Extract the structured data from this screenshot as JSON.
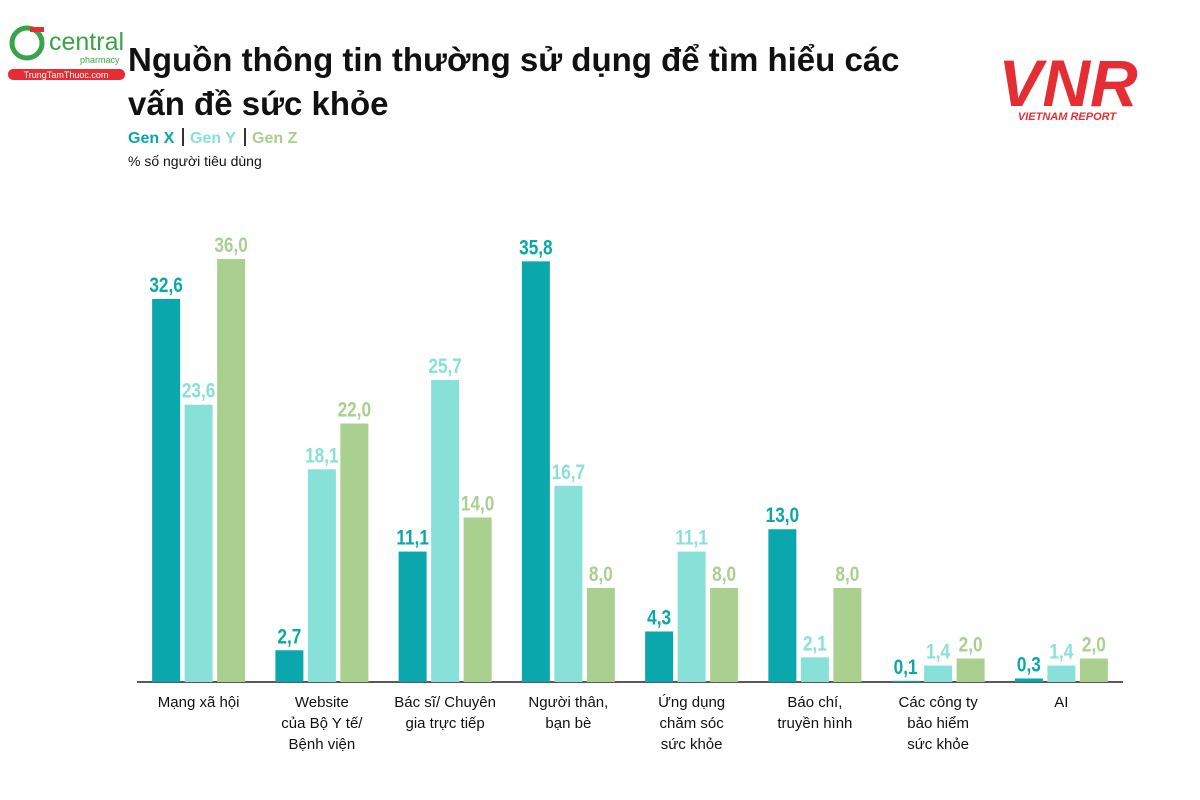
{
  "logos": {
    "left": {
      "name": "central",
      "sub": "pharmacy",
      "url": "TrungTamThuoc.com"
    },
    "right": {
      "mark": "VNR",
      "name": "VIETNAM REPORT"
    }
  },
  "chart_data": {
    "type": "bar",
    "title": "Nguồn thông tin thường sử dụng để tìm hiểu các vấn đề sức khỏe",
    "subtitle": "% số người tiêu dùng",
    "categories": [
      "Mạng xã hội",
      "Website\ncủa Bộ Y tế/\nBệnh viện",
      "Bác sĩ/ Chuyên\ngia trực tiếp",
      "Người thân,\nbạn bè",
      "Ứng dụng\nchăm sóc\nsức khỏe",
      "Báo chí,\ntruyền hình",
      "Các công ty\nbảo hiểm\nsức khỏe",
      "AI"
    ],
    "series": [
      {
        "name": "Gen X",
        "color": "#0aa7ac",
        "values": [
          32.6,
          2.7,
          11.1,
          35.8,
          4.3,
          13.0,
          0.1,
          0.3
        ],
        "value_labels": [
          "32,6",
          "2,7",
          "11,1",
          "35,8",
          "4,3",
          "13,0",
          "0,1",
          "0,3"
        ]
      },
      {
        "name": "Gen Y",
        "color": "#88e1d8",
        "values": [
          23.6,
          18.1,
          25.7,
          16.7,
          11.1,
          2.1,
          1.4,
          1.4
        ],
        "value_labels": [
          "23,6",
          "18,1",
          "25,7",
          "16,7",
          "11,1",
          "2,1",
          "1,4",
          "1,4"
        ]
      },
      {
        "name": "Gen Z",
        "color": "#a9d08e",
        "values": [
          36.0,
          22.0,
          14.0,
          8.0,
          8.0,
          8.0,
          2.0,
          2.0
        ],
        "value_labels": [
          "36,0",
          "22,0",
          "14,0",
          "8,0",
          "8,0",
          "8,0",
          "2,0",
          "2,0"
        ]
      }
    ],
    "ylim": [
      0,
      36
    ]
  }
}
